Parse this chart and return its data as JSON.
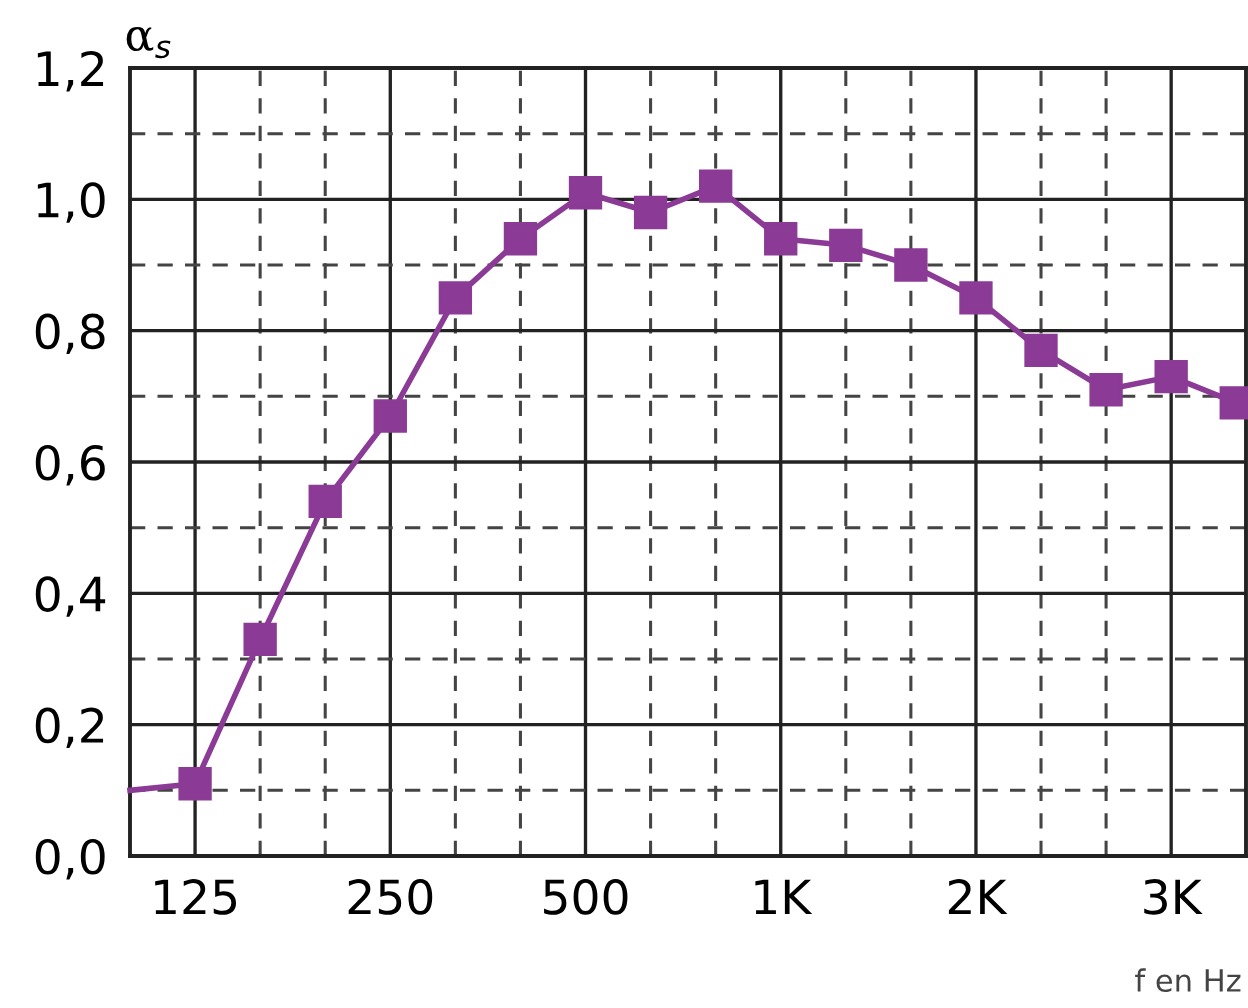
{
  "chart_data": {
    "type": "line",
    "ylabel": "α$_{s}$",
    "xlabel": "f en Hz",
    "categories": [
      null,
      "125",
      null,
      null,
      "250",
      null,
      null,
      "500",
      null,
      null,
      "1K",
      null,
      null,
      "2K",
      null,
      null,
      "3K",
      null
    ],
    "series": [
      {
        "color": "#8b3a96",
        "values": [
          0.1,
          0.11,
          0.33,
          0.54,
          0.67,
          0.85,
          0.94,
          1.01,
          0.98,
          1.02,
          0.94,
          0.93,
          0.9,
          0.85,
          0.77,
          0.71,
          0.73,
          0.69
        ]
      }
    ],
    "marker": "square",
    "line_style": "solid",
    "grid": true,
    "legend": false,
    "ylim": [
      0,
      1.2
    ],
    "yticks": [
      {
        "value": 0,
        "label": "0,0"
      },
      {
        "value": 0.1,
        "label": null
      },
      {
        "value": 0.2,
        "label": "0,2"
      },
      {
        "value": 0.3,
        "label": null
      },
      {
        "value": 0.4,
        "label": "0,4"
      },
      {
        "value": 0.5,
        "label": null
      },
      {
        "value": 0.6,
        "label": "0,6"
      },
      {
        "value": 0.7,
        "label": null
      },
      {
        "value": 0.8,
        "label": "0,8"
      },
      {
        "value": 0.9,
        "label": null
      },
      {
        "value": 1.0,
        "label": "1,0"
      },
      {
        "value": 1.1,
        "label": null
      },
      {
        "value": 1.2,
        "label": "1,2"
      }
    ]
  }
}
